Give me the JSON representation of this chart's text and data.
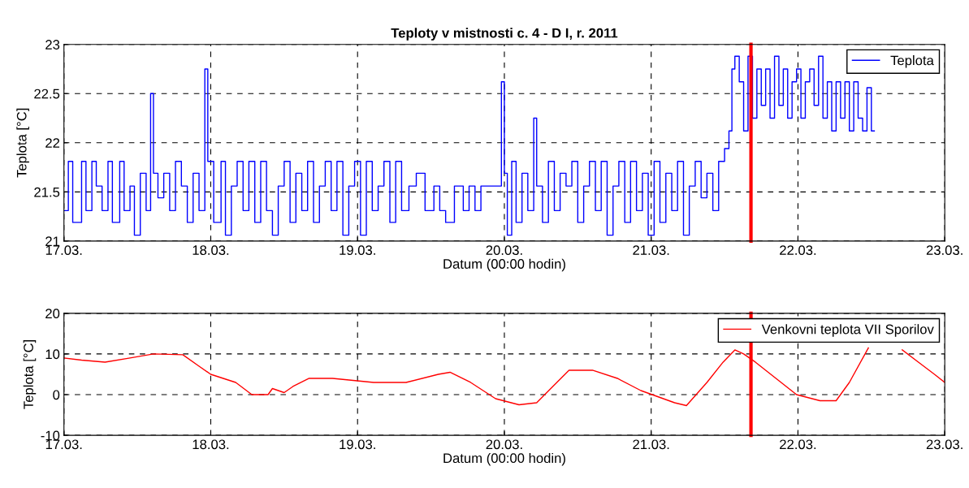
{
  "chart_data": [
    {
      "type": "step",
      "title": "Teploty v mistnosti c. 4 - D I, r. 2011",
      "xlabel": "Datum (00:00 hodin)",
      "ylabel": "Teplota [°C]",
      "xlim": [
        "2011-03-17",
        "2011-03-23"
      ],
      "xticks": [
        {
          "value": "2011-03-17",
          "label": "17.03."
        },
        {
          "value": "2011-03-18",
          "label": "18.03."
        },
        {
          "value": "2011-03-19",
          "label": "19.03."
        },
        {
          "value": "2011-03-20",
          "label": "20.03."
        },
        {
          "value": "2011-03-21",
          "label": "21.03."
        },
        {
          "value": "2011-03-22",
          "label": "22.03."
        },
        {
          "value": "2011-03-23",
          "label": "23.03."
        }
      ],
      "ylim": [
        21,
        23
      ],
      "yticks": [
        21,
        21.5,
        22,
        22.5,
        23
      ],
      "grid": true,
      "legend": "top right",
      "ref_lines": [
        {
          "axis": "x",
          "value": "2011-03-21T16:19",
          "label": null,
          "color": "#ff0000"
        }
      ],
      "series": [
        {
          "name": "Teplota",
          "color": "#0000ff",
          "x": [
            "2011-03-17T00:00",
            "2011-03-17T00:43",
            "2011-03-17T01:26",
            "2011-03-17T02:53",
            "2011-03-17T03:36",
            "2011-03-17T04:34",
            "2011-03-17T05:17",
            "2011-03-17T06:14",
            "2011-03-17T07:12",
            "2011-03-17T07:55",
            "2011-03-17T09:07",
            "2011-03-17T09:50",
            "2011-03-17T10:48",
            "2011-03-17T11:31",
            "2011-03-17T12:29",
            "2011-03-17T13:26",
            "2011-03-17T14:10",
            "2011-03-17T14:38",
            "2011-03-17T15:22",
            "2011-03-17T16:19",
            "2011-03-17T17:17",
            "2011-03-17T18:14",
            "2011-03-17T19:12",
            "2011-03-17T20:10",
            "2011-03-17T21:07",
            "2011-03-17T22:05",
            "2011-03-17T23:02",
            "2011-03-17T23:31",
            "2011-03-18T00:29",
            "2011-03-18T01:41",
            "2011-03-18T02:24",
            "2011-03-18T03:22",
            "2011-03-18T04:19",
            "2011-03-18T05:17",
            "2011-03-18T06:14",
            "2011-03-18T07:12",
            "2011-03-18T08:10",
            "2011-03-18T09:07",
            "2011-03-18T10:05",
            "2011-03-18T11:02",
            "2011-03-18T12:00",
            "2011-03-18T12:58",
            "2011-03-18T13:55",
            "2011-03-18T14:53",
            "2011-03-18T15:50",
            "2011-03-18T16:48",
            "2011-03-18T17:46",
            "2011-03-18T18:43",
            "2011-03-18T19:41",
            "2011-03-18T20:38",
            "2011-03-18T21:36",
            "2011-03-18T22:34",
            "2011-03-18T23:31",
            "2011-03-19T00:29",
            "2011-03-19T01:26",
            "2011-03-19T02:24",
            "2011-03-19T03:22",
            "2011-03-19T04:19",
            "2011-03-19T05:17",
            "2011-03-19T06:14",
            "2011-03-19T07:12",
            "2011-03-19T08:24",
            "2011-03-19T09:36",
            "2011-03-19T11:02",
            "2011-03-19T12:29",
            "2011-03-19T13:26",
            "2011-03-19T14:24",
            "2011-03-19T15:50",
            "2011-03-19T17:17",
            "2011-03-19T18:14",
            "2011-03-19T19:12",
            "2011-03-19T20:10",
            "2011-03-19T23:31",
            "2011-03-20T00:00",
            "2011-03-20T00:29",
            "2011-03-20T01:12",
            "2011-03-20T01:55",
            "2011-03-20T02:53",
            "2011-03-20T03:50",
            "2011-03-20T04:48",
            "2011-03-20T05:17",
            "2011-03-20T06:14",
            "2011-03-20T07:12",
            "2011-03-20T08:10",
            "2011-03-20T09:07",
            "2011-03-20T10:05",
            "2011-03-20T11:02",
            "2011-03-20T12:00",
            "2011-03-20T12:58",
            "2011-03-20T13:55",
            "2011-03-20T14:53",
            "2011-03-20T15:50",
            "2011-03-20T16:48",
            "2011-03-20T17:46",
            "2011-03-20T18:43",
            "2011-03-20T19:41",
            "2011-03-20T20:38",
            "2011-03-20T21:36",
            "2011-03-20T22:34",
            "2011-03-20T23:31",
            "2011-03-21T00:29",
            "2011-03-21T01:26",
            "2011-03-21T02:24",
            "2011-03-21T03:22",
            "2011-03-21T04:19",
            "2011-03-21T05:17",
            "2011-03-21T06:14",
            "2011-03-21T07:12",
            "2011-03-21T08:10",
            "2011-03-21T09:07",
            "2011-03-21T10:05",
            "2011-03-21T11:02",
            "2011-03-21T12:00",
            "2011-03-21T12:43",
            "2011-03-21T13:12",
            "2011-03-21T13:41",
            "2011-03-21T14:24",
            "2011-03-21T15:07",
            "2011-03-21T15:50",
            "2011-03-21T16:34",
            "2011-03-21T17:17",
            "2011-03-21T18:00",
            "2011-03-21T18:43",
            "2011-03-21T19:26",
            "2011-03-21T20:10",
            "2011-03-21T20:53",
            "2011-03-21T21:36",
            "2011-03-21T22:19",
            "2011-03-21T23:02",
            "2011-03-21T23:46",
            "2011-03-22T00:29",
            "2011-03-22T01:12",
            "2011-03-22T01:55",
            "2011-03-22T02:38",
            "2011-03-22T03:22",
            "2011-03-22T04:05",
            "2011-03-22T04:48",
            "2011-03-22T05:31",
            "2011-03-22T06:14",
            "2011-03-22T06:58",
            "2011-03-22T07:41",
            "2011-03-22T08:24",
            "2011-03-22T09:07",
            "2011-03-22T09:50",
            "2011-03-22T10:34",
            "2011-03-22T11:17",
            "2011-03-22T12:00",
            "2011-03-22T12:29"
          ],
          "values": [
            21.31,
            21.81,
            21.19,
            21.81,
            21.31,
            21.81,
            21.56,
            21.31,
            21.81,
            21.19,
            21.81,
            21.31,
            21.56,
            21.06,
            21.69,
            21.31,
            22.5,
            21.69,
            21.44,
            21.69,
            21.31,
            21.81,
            21.56,
            21.19,
            21.69,
            21.31,
            22.75,
            21.81,
            21.19,
            21.81,
            21.06,
            21.56,
            21.81,
            21.31,
            21.81,
            21.19,
            21.81,
            21.31,
            21.06,
            21.56,
            21.81,
            21.19,
            21.69,
            21.31,
            21.81,
            21.19,
            21.56,
            21.81,
            21.31,
            21.81,
            21.06,
            21.56,
            21.81,
            21.06,
            21.81,
            21.31,
            21.56,
            21.81,
            21.19,
            21.81,
            21.31,
            21.56,
            21.69,
            21.31,
            21.56,
            21.31,
            21.19,
            21.56,
            21.31,
            21.56,
            21.31,
            21.56,
            22.62,
            21.69,
            21.06,
            21.81,
            21.19,
            21.69,
            21.31,
            22.25,
            21.56,
            21.19,
            21.81,
            21.31,
            21.69,
            21.56,
            21.81,
            21.19,
            21.56,
            21.81,
            21.31,
            21.81,
            21.06,
            21.56,
            21.81,
            21.19,
            21.81,
            21.31,
            21.69,
            21.06,
            21.81,
            21.19,
            21.69,
            21.31,
            21.81,
            21.06,
            21.56,
            21.81,
            21.44,
            21.69,
            21.31,
            21.81,
            21.94,
            22.12,
            22.75,
            22.88,
            22.62,
            22.12,
            22.88,
            22.25,
            22.75,
            22.38,
            22.75,
            22.25,
            22.88,
            22.38,
            22.75,
            22.25,
            22.62,
            22.75,
            22.25,
            22.62,
            22.75,
            22.38,
            22.88,
            22.25,
            22.62,
            22.12,
            22.62,
            22.25,
            22.62,
            22.12,
            22.62,
            22.25,
            22.12,
            22.56,
            22.12,
            22.12
          ]
        }
      ]
    },
    {
      "type": "line",
      "xlabel": "Datum (00:00 hodin)",
      "ylabel": "Teplota [°C]",
      "xlim": [
        "2011-03-17",
        "2011-03-23"
      ],
      "xticks": [
        {
          "value": "2011-03-17",
          "label": "17.03."
        },
        {
          "value": "2011-03-18",
          "label": "18.03."
        },
        {
          "value": "2011-03-19",
          "label": "19.03."
        },
        {
          "value": "2011-03-20",
          "label": "20.03."
        },
        {
          "value": "2011-03-21",
          "label": "21.03."
        },
        {
          "value": "2011-03-22",
          "label": "22.03."
        },
        {
          "value": "2011-03-23",
          "label": "23.03."
        }
      ],
      "ylim": [
        -10,
        20
      ],
      "yticks": [
        -10,
        0,
        10,
        20
      ],
      "grid": true,
      "legend": "top right",
      "ref_lines": [
        {
          "axis": "x",
          "value": "2011-03-21T16:19",
          "label": null,
          "color": "#ff0000"
        }
      ],
      "series": [
        {
          "name": "Venkovni teplota VII Sporilov",
          "color": "#ff0000",
          "x": [
            "2011-03-17T00:00",
            "2011-03-17T02:53",
            "2011-03-17T06:43",
            "2011-03-17T10:48",
            "2011-03-17T14:38",
            "2011-03-17T19:26",
            "2011-03-17T22:05",
            "2011-03-18T00:00",
            "2011-03-18T04:05",
            "2011-03-18T06:43",
            "2011-03-18T09:22",
            "2011-03-18T10:05",
            "2011-03-18T12:00",
            "2011-03-18T13:26",
            "2011-03-18T16:05",
            "2011-03-18T19:55",
            "2011-03-19T02:38",
            "2011-03-19T07:55",
            "2011-03-19T13:12",
            "2011-03-19T15:07",
            "2011-03-19T18:29",
            "2011-03-19T22:34",
            "2011-03-20T02:24",
            "2011-03-20T05:17",
            "2011-03-20T07:55",
            "2011-03-20T10:34",
            "2011-03-20T14:24",
            "2011-03-20T18:29",
            "2011-03-20T22:19",
            "2011-03-21T03:50",
            "2011-03-21T05:46",
            "2011-03-21T09:07",
            "2011-03-21T11:46",
            "2011-03-21T13:41",
            "2011-03-21T15:07",
            "2011-03-21T17:02",
            "2011-03-21T20:24",
            "2011-03-21T23:46",
            "2011-03-22T03:36",
            "2011-03-22T06:14",
            "2011-03-22T08:24",
            "2011-03-22T11:31",
            "2011-03-22T14:10",
            "2011-03-22T17:02",
            "2011-03-22T19:41",
            "2011-03-22T22:19",
            "2011-03-23T00:00"
          ],
          "values": [
            9,
            8.5,
            8,
            9,
            10,
            9.8,
            7,
            5,
            3,
            0,
            0,
            1.5,
            0.5,
            2,
            4,
            4,
            3,
            3,
            5,
            5.5,
            3,
            -1,
            -2.5,
            -2,
            2,
            6,
            6,
            4,
            1,
            -2,
            -2.7,
            3,
            8,
            11,
            10,
            8,
            4,
            0,
            -1.5,
            -1.5,
            3,
            11.5,
            null,
            11,
            8,
            5,
            3
          ]
        }
      ]
    }
  ]
}
